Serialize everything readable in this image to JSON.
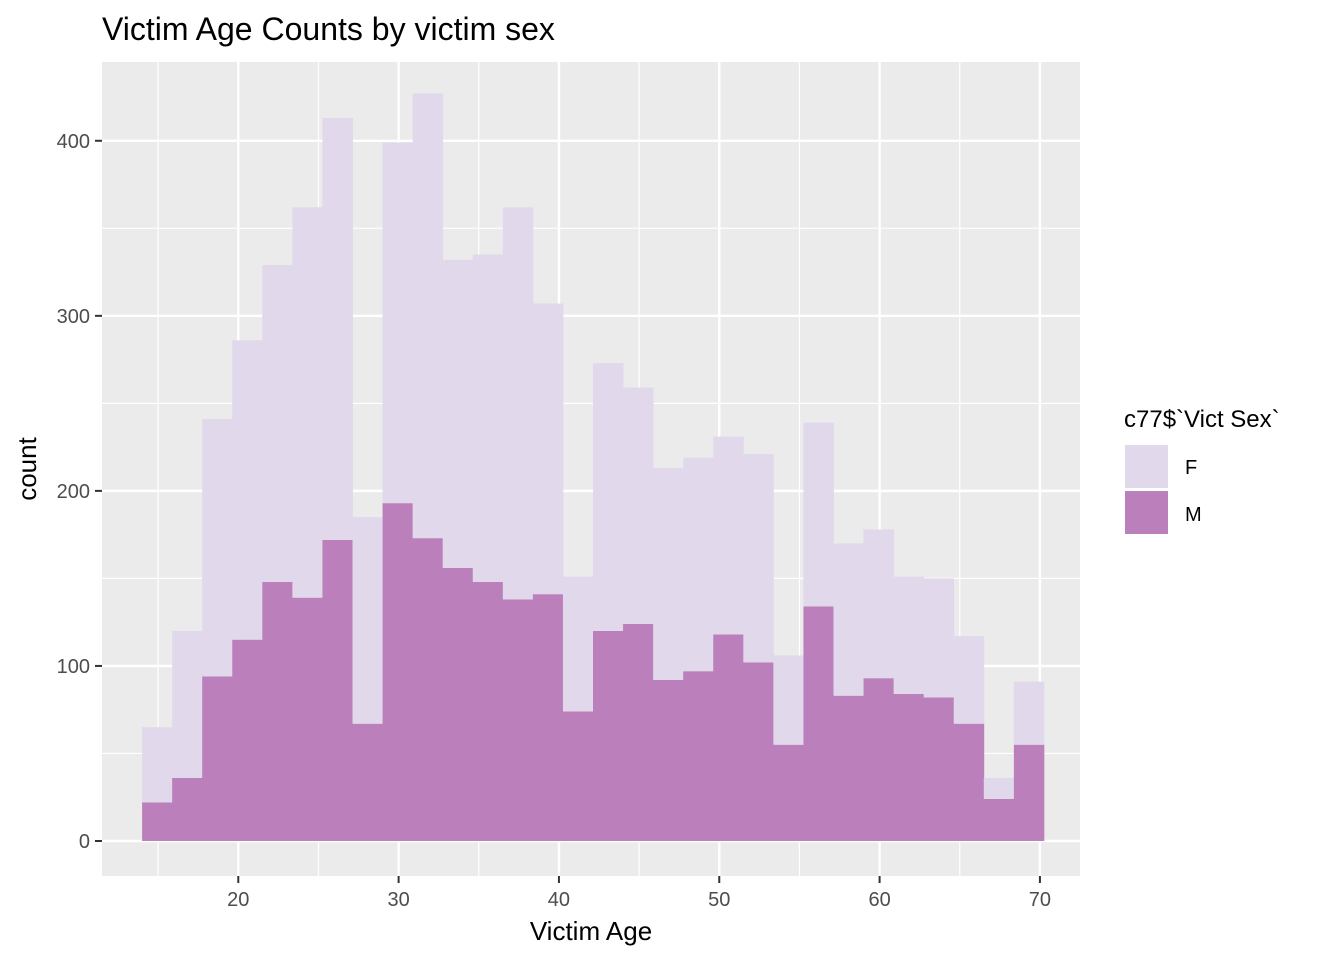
{
  "chart_data": {
    "type": "bar",
    "subtype": "histogram-stacked",
    "title": "Victim Age Counts by victim sex",
    "xlabel": "Victim Age",
    "ylabel": "count",
    "xlim": [
      11.5,
      72.5
    ],
    "ylim": [
      -20,
      445
    ],
    "x_ticks": [
      20,
      30,
      40,
      50,
      60,
      70
    ],
    "y_ticks": [
      0,
      100,
      200,
      300,
      400
    ],
    "bin_width": 1.875,
    "bin_starts": [
      14,
      15.875,
      17.75,
      19.625,
      21.5,
      23.375,
      25.25,
      27.125,
      29,
      30.875,
      32.75,
      34.625,
      36.5,
      38.375,
      40.25,
      42.125,
      44,
      45.875,
      47.75,
      49.625,
      51.5,
      53.375,
      55.25,
      57.125,
      59,
      60.875,
      62.75,
      64.625,
      66.5,
      68.375
    ],
    "legend": {
      "title": "c77$`Vict Sex`",
      "position": "right"
    },
    "series": [
      {
        "name": "F",
        "color": "#e1d8eb",
        "values": [
          43,
          84,
          147,
          171,
          181,
          223,
          241,
          118,
          206,
          254,
          176,
          187,
          224,
          166,
          77,
          153,
          135,
          121,
          122,
          113,
          119,
          51,
          105,
          87,
          85,
          67,
          68,
          50,
          12,
          36
        ]
      },
      {
        "name": "M",
        "color": "#bb80bb",
        "values": [
          22,
          36,
          94,
          115,
          148,
          139,
          172,
          67,
          193,
          173,
          156,
          148,
          138,
          141,
          74,
          120,
          124,
          92,
          97,
          118,
          102,
          55,
          134,
          83,
          93,
          84,
          82,
          67,
          24,
          55
        ]
      }
    ],
    "grid": true
  }
}
